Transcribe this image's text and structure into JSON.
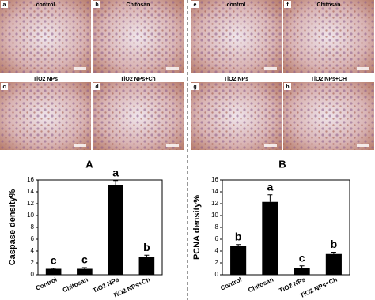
{
  "panels": [
    {
      "letter": "a",
      "label": "control"
    },
    {
      "letter": "b",
      "label": "Chitosan"
    },
    {
      "letter": "c",
      "label": "TiO2 NPs"
    },
    {
      "letter": "d",
      "label": "TiO2 NPs+Ch"
    },
    {
      "letter": "e",
      "label": "control"
    },
    {
      "letter": "f",
      "label": "Chitosan"
    },
    {
      "letter": "g",
      "label": "TiO2 NPs"
    },
    {
      "letter": "h",
      "label": "TiO2 NPs+CH"
    }
  ],
  "chart_data": [
    {
      "type": "bar",
      "title": "A",
      "ylabel": "Caspase density%",
      "categories": [
        "Control",
        "Chitosan",
        "TiO2 NPs",
        "TiO2 NPs+Ch"
      ],
      "values": [
        1.0,
        1.0,
        15.2,
        3.0
      ],
      "errors": [
        0.1,
        0.2,
        0.7,
        0.3
      ],
      "annotations": [
        "c",
        "c",
        "a",
        "b"
      ],
      "color": "#000000",
      "ylim": [
        0,
        16
      ],
      "yticks": [
        0,
        2,
        4,
        6,
        8,
        10,
        12,
        14,
        16
      ]
    },
    {
      "type": "bar",
      "title": "B",
      "ylabel": "PCNA density%",
      "categories": [
        "Control",
        "Chitosan",
        "TiO2 NPs",
        "TiO2 NPs+Ch"
      ],
      "values": [
        4.9,
        12.3,
        1.2,
        3.5
      ],
      "errors": [
        0.2,
        1.2,
        0.3,
        0.3
      ],
      "annotations": [
        "b",
        "a",
        "c",
        "b"
      ],
      "color": "#000000",
      "ylim": [
        0,
        16
      ],
      "yticks": [
        0,
        2,
        4,
        6,
        8,
        10,
        12,
        14,
        16
      ]
    }
  ]
}
